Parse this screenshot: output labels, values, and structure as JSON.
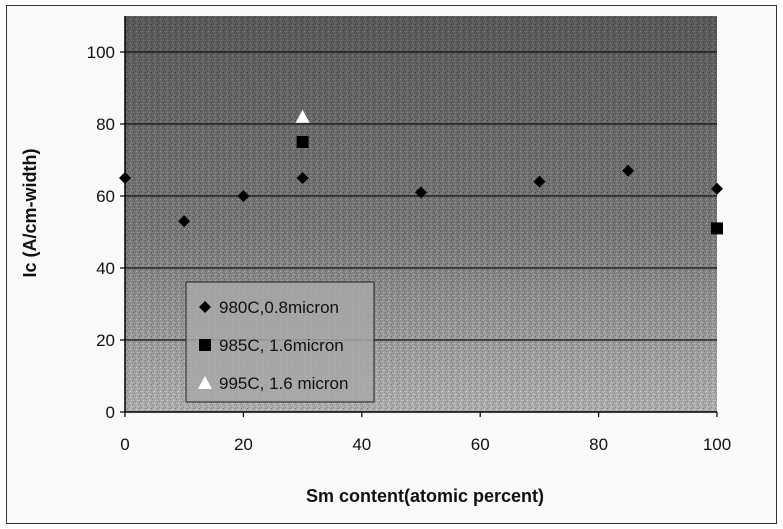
{
  "chart_data": {
    "type": "scatter",
    "title": "",
    "xlabel": "Sm content(atomic percent)",
    "ylabel": "Ic (A/cm-width)",
    "xlim": [
      0,
      100
    ],
    "ylim": [
      0,
      110
    ],
    "xticks": [
      0,
      20,
      40,
      60,
      80,
      100
    ],
    "yticks": [
      0,
      20,
      40,
      60,
      80,
      100
    ],
    "grid": "horizontal",
    "legend_position": "bottom-left",
    "series": [
      {
        "name": "980C,0.8micron",
        "marker": "diamond",
        "color": "#000000",
        "x": [
          0,
          10,
          20,
          30,
          50,
          70,
          85,
          100
        ],
        "y": [
          65,
          53,
          60,
          65,
          61,
          64,
          67,
          62
        ]
      },
      {
        "name": "985C, 1.6micron",
        "marker": "square",
        "color": "#000000",
        "x": [
          30,
          100
        ],
        "y": [
          75,
          51
        ]
      },
      {
        "name": "995C, 1.6 micron",
        "marker": "triangle",
        "color": "#ffffff",
        "x": [
          30
        ],
        "y": [
          82
        ]
      }
    ]
  }
}
